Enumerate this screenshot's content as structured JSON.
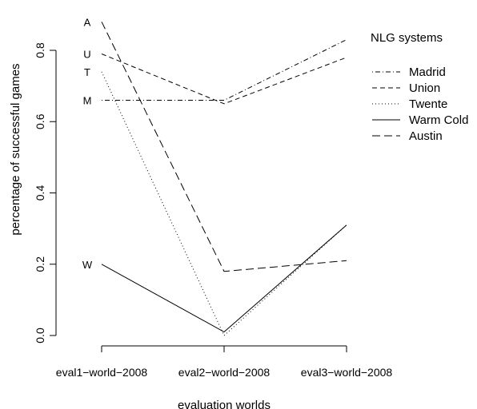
{
  "chart_data": {
    "type": "line",
    "categories": [
      "eval1−world−2008",
      "eval2−world−2008",
      "eval3−world−2008"
    ],
    "xlabel": "evaluation worlds",
    "ylabel": "percentage of successful games",
    "ylim": [
      0,
      0.9
    ],
    "yticks": [
      "0.0",
      "0.2",
      "0.4",
      "0.6",
      "0.8"
    ],
    "grid": false,
    "legend": {
      "title": "NLG systems",
      "position": "top-right"
    },
    "series": [
      {
        "name": "Madrid",
        "label": "M",
        "dash": "dotdash",
        "values": [
          0.66,
          0.66,
          0.83
        ]
      },
      {
        "name": "Union",
        "label": "U",
        "dash": "dashed",
        "values": [
          0.79,
          0.65,
          0.78
        ]
      },
      {
        "name": "Twente",
        "label": "T",
        "dash": "dotted",
        "values": [
          0.74,
          0.0,
          0.31
        ]
      },
      {
        "name": "Warm Cold",
        "label": "W",
        "dash": "solid",
        "values": [
          0.2,
          0.01,
          0.31
        ]
      },
      {
        "name": "Austin",
        "label": "A",
        "dash": "longdash",
        "values": [
          0.88,
          0.18,
          0.21
        ]
      }
    ]
  }
}
